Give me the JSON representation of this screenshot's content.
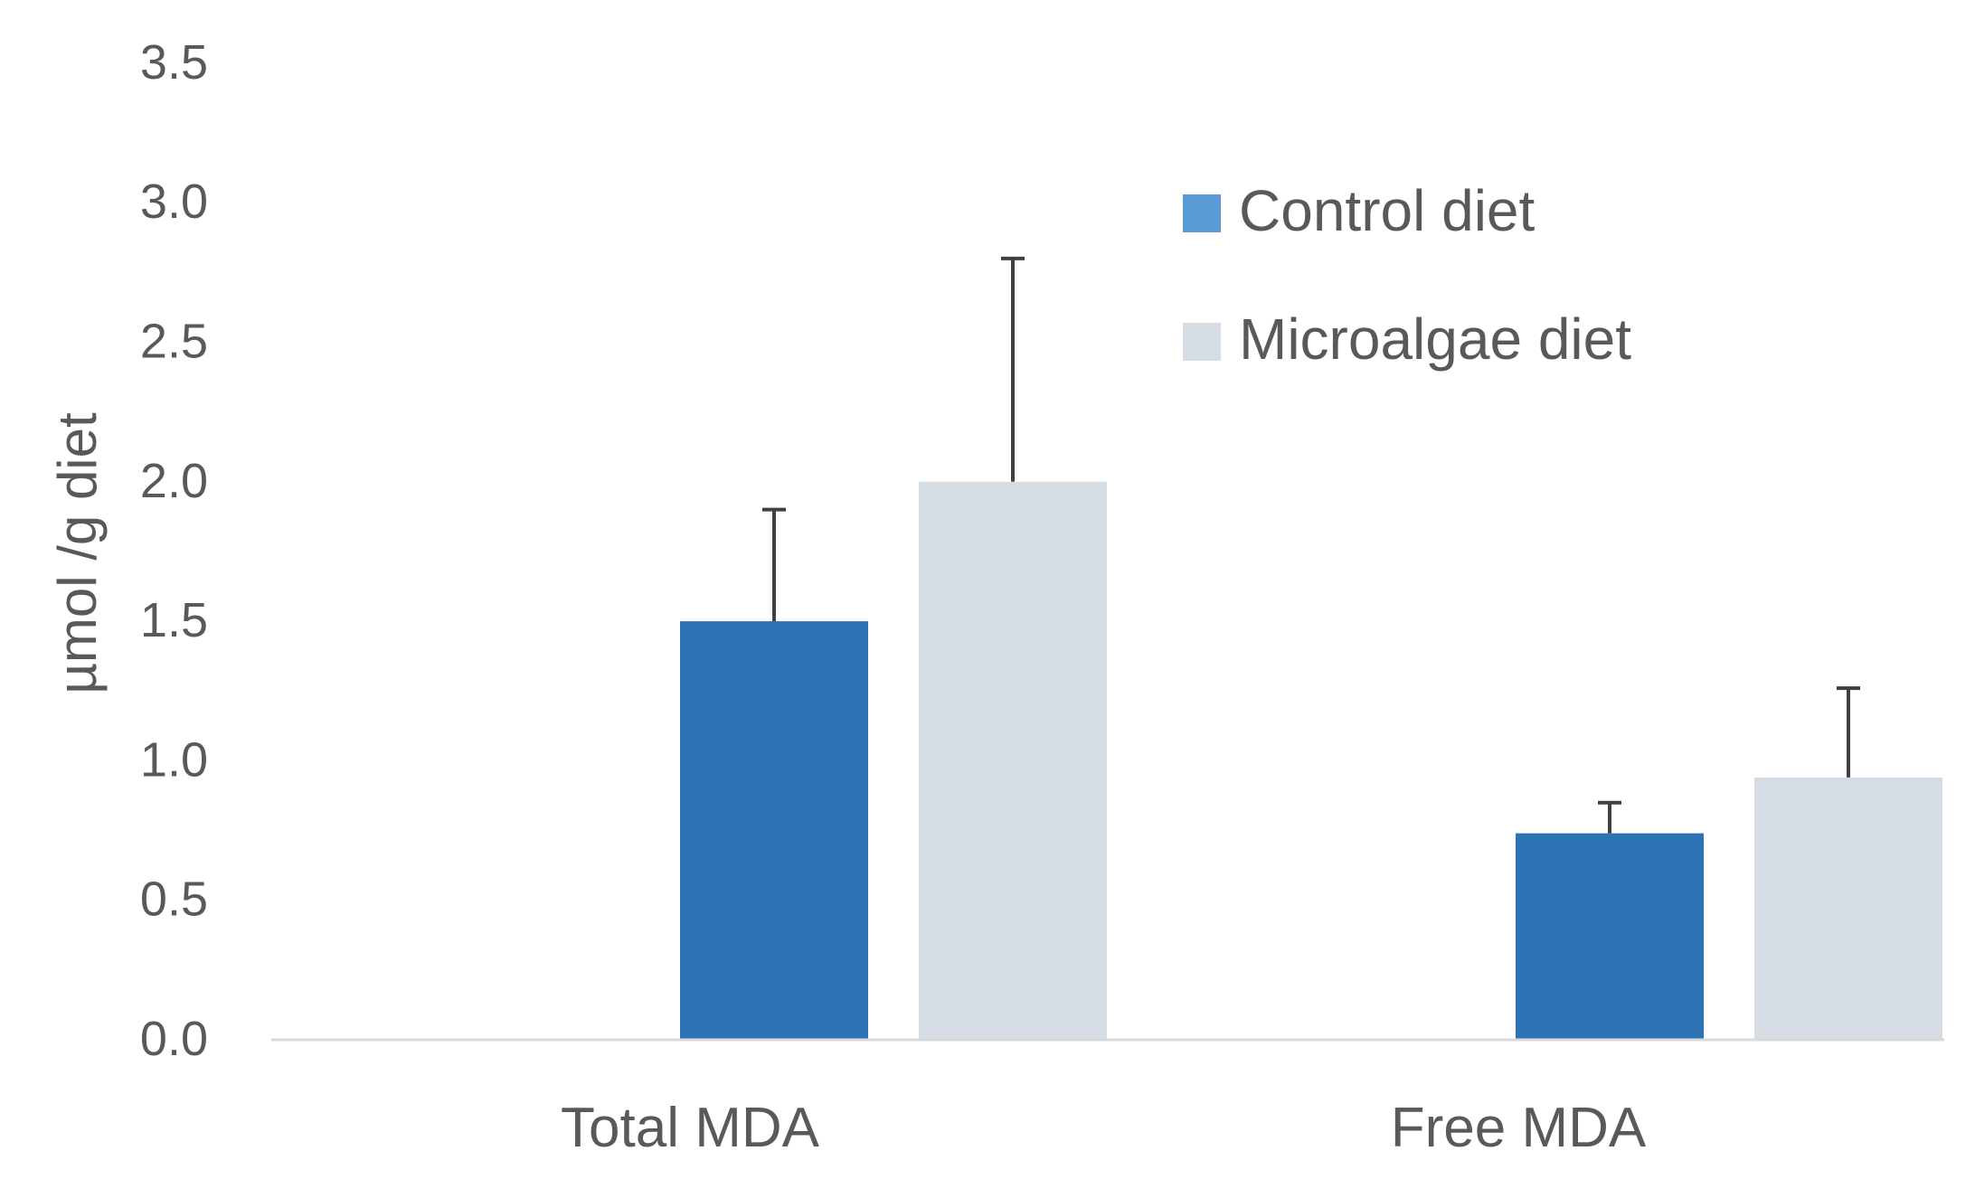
{
  "chart_data": {
    "type": "bar",
    "categories": [
      "Total MDA",
      "Free MDA"
    ],
    "series": [
      {
        "name": "Control diet",
        "color": "#2E74B5",
        "legend_color": "#5B9BD5",
        "values": [
          1.5,
          0.74
        ],
        "error_upper": [
          1.9,
          0.85
        ]
      },
      {
        "name": "Microalgae diet",
        "color": "#D6DCE4",
        "legend_color": "#D6DCE4",
        "values": [
          2.0,
          0.94
        ],
        "error_upper": [
          2.8,
          1.26
        ]
      }
    ],
    "xlabel": "",
    "ylabel": "µmol /g diet",
    "ylim": [
      0,
      3.5
    ],
    "yticks": [
      "0.0",
      "0.5",
      "1.0",
      "1.5",
      "2.0",
      "2.5",
      "3.0",
      "3.5"
    ],
    "grid": false,
    "legend_position": "top-right",
    "text_color": "#595959",
    "axis_color": "#D9D9D9",
    "error_bar_color": "#404040"
  }
}
